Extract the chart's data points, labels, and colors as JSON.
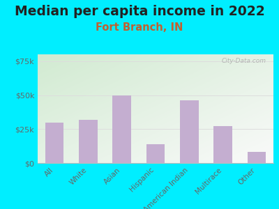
{
  "title": "Median per capita income in 2022",
  "subtitle": "Fort Branch, IN",
  "categories": [
    "All",
    "White",
    "Asian",
    "Hispanic",
    "American Indian",
    "Multirace",
    "Other"
  ],
  "values": [
    30000,
    32000,
    50000,
    14000,
    46000,
    27000,
    8000
  ],
  "bar_color": "#c4aed0",
  "title_fontsize": 13.5,
  "title_color": "#222222",
  "subtitle_fontsize": 10.5,
  "subtitle_color": "#c06030",
  "background_outer": "#00eeff",
  "ylim": [
    0,
    80000
  ],
  "yticks": [
    0,
    25000,
    50000,
    75000
  ],
  "ytick_labels": [
    "$0",
    "$25k",
    "$50k",
    "$75k"
  ],
  "watermark": "City-Data.com",
  "tick_label_color": "#666666",
  "grid_color": "#dddddd",
  "spine_color": "#bbbbbb"
}
